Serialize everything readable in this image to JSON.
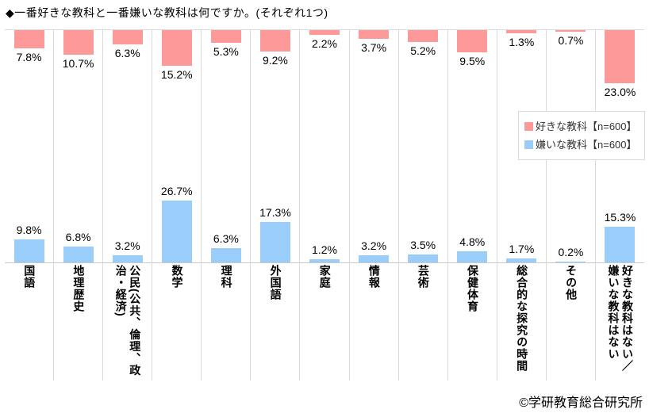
{
  "page": {
    "footer": "©学研教育総合研究所"
  },
  "chart_data": {
    "type": "bar",
    "title": "◆一番好きな教科と一番嫌いな教科は何ですか。(それぞれ1つ)",
    "categories": [
      "国語",
      "地理歴史",
      "公民(公共、倫理、政治・経済)",
      "数学",
      "理科",
      "外国語",
      "家庭",
      "情報",
      "芸術",
      "保健体育",
      "総合的な探究の時間",
      "その他",
      "好きな教科はない／嫌いな教科はない"
    ],
    "series": [
      {
        "name": "好きな教科【n=600】",
        "color": "#FD9999",
        "direction": "hanging-from-top-axis",
        "values": [
          7.8,
          10.7,
          6.3,
          15.2,
          5.3,
          9.2,
          2.2,
          3.7,
          5.2,
          9.5,
          1.3,
          0.7,
          23.0
        ]
      },
      {
        "name": "嫌いな教科【n=600】",
        "color": "#9BCDFB",
        "direction": "rising-from-bottom-axis",
        "values": [
          9.8,
          6.8,
          3.2,
          26.7,
          6.3,
          17.3,
          1.2,
          3.2,
          3.5,
          4.8,
          1.7,
          0.2,
          15.3
        ]
      }
    ],
    "value_suffix": "%",
    "axis": {
      "max_each_side": 50,
      "value_labels_shown": true
    },
    "grid": "vertical category separators",
    "legend_position": "middle-right",
    "colors": {
      "gridline": "#d9d9d9",
      "axis_line": "#c9c9c9",
      "text": "#000000",
      "legend_border": "#d9d9d9"
    }
  }
}
